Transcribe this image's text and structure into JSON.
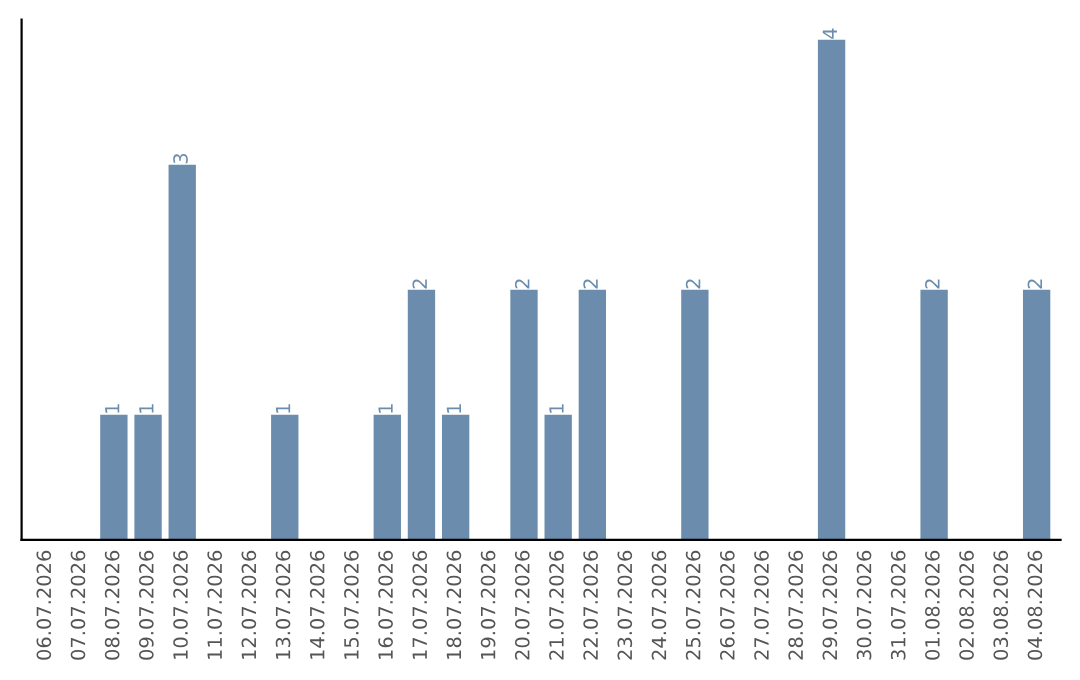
{
  "chart_data": {
    "type": "bar",
    "categories": [
      "06.07.2026",
      "07.07.2026",
      "08.07.2026",
      "09.07.2026",
      "10.07.2026",
      "11.07.2026",
      "12.07.2026",
      "13.07.2026",
      "14.07.2026",
      "15.07.2026",
      "16.07.2026",
      "17.07.2026",
      "18.07.2026",
      "19.07.2026",
      "20.07.2026",
      "21.07.2026",
      "22.07.2026",
      "23.07.2026",
      "24.07.2026",
      "25.07.2026",
      "26.07.2026",
      "27.07.2026",
      "28.07.2026",
      "29.07.2026",
      "30.07.2026",
      "31.07.2026",
      "01.08.2026",
      "02.08.2026",
      "03.08.2026",
      "04.08.2026"
    ],
    "values": [
      0,
      0,
      1,
      1,
      3,
      0,
      0,
      1,
      0,
      0,
      1,
      2,
      1,
      0,
      2,
      1,
      2,
      0,
      0,
      2,
      0,
      0,
      0,
      4,
      0,
      0,
      2,
      0,
      0,
      2
    ],
    "value_labels": [
      null,
      null,
      "1",
      "1",
      "3",
      null,
      null,
      "1",
      null,
      null,
      "1",
      "2",
      "1",
      null,
      "2",
      "1",
      "2",
      null,
      null,
      "2",
      null,
      null,
      null,
      "4",
      null,
      null,
      "2",
      null,
      null,
      "2"
    ],
    "color": "#6b8cad",
    "tick_labels": "x",
    "grid": false,
    "legend": false
  }
}
